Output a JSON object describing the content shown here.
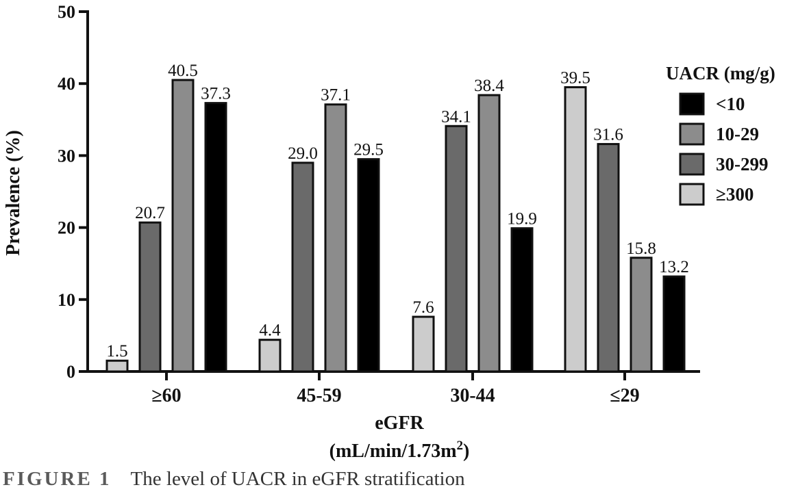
{
  "chart_data": {
    "type": "bar",
    "categories": [
      "≥60",
      "45-59",
      "30-44",
      "≤29"
    ],
    "ylabel": "Prevalence (%)",
    "xlabel_line1": "eGFR",
    "xlabel_line2": "(mL/min/1.73m",
    "xlabel_sup": "2",
    "xlabel_close": ")",
    "ylim": [
      0,
      50
    ],
    "yticks": [
      0,
      10,
      20,
      30,
      40,
      50
    ],
    "legend": {
      "title": "UACR  (mg/g)",
      "position": "top-right",
      "entries": [
        {
          "name": "<10",
          "color": "#000000"
        },
        {
          "name": "10-29",
          "color": "#8c8c8c"
        },
        {
          "name": "30-299",
          "color": "#6a6a6a"
        },
        {
          "name": "≥300",
          "color": "#cccccc"
        }
      ]
    },
    "groups": [
      {
        "category": "≥60",
        "bars": [
          {
            "series": "≥300",
            "value": 1.5,
            "label": "1.5"
          },
          {
            "series": "30-299",
            "value": 20.7,
            "label": "20.7"
          },
          {
            "series": "10-29",
            "value": 40.5,
            "label": "40.5"
          },
          {
            "series": "<10",
            "value": 37.3,
            "label": "37.3"
          }
        ]
      },
      {
        "category": "45-59",
        "bars": [
          {
            "series": "≥300",
            "value": 4.4,
            "label": "4.4"
          },
          {
            "series": "30-299",
            "value": 29.0,
            "label": "29.0"
          },
          {
            "series": "10-29",
            "value": 37.1,
            "label": "37.1"
          },
          {
            "series": "<10",
            "value": 29.5,
            "label": "29.5"
          }
        ]
      },
      {
        "category": "30-44",
        "bars": [
          {
            "series": "≥300",
            "value": 7.6,
            "label": "7.6"
          },
          {
            "series": "30-299",
            "value": 34.1,
            "label": "34.1"
          },
          {
            "series": "10-29",
            "value": 38.4,
            "label": "38.4"
          },
          {
            "series": "<10",
            "value": 19.9,
            "label": "19.9"
          }
        ]
      },
      {
        "category": "≤29",
        "bars": [
          {
            "series": "≥300",
            "value": 39.5,
            "label": "39.5"
          },
          {
            "series": "30-299",
            "value": 31.6,
            "label": "31.6"
          },
          {
            "series": "10-29",
            "value": 15.8,
            "label": "15.8"
          },
          {
            "series": "<10",
            "value": 13.2,
            "label": "13.2"
          }
        ]
      }
    ]
  },
  "caption": {
    "figure_number": "FIGURE 1",
    "text": "The level of UACR in eGFR stratification"
  }
}
